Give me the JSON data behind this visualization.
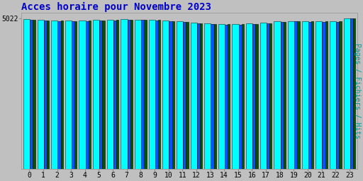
{
  "title": "Acces horaire pour Novembre 2023",
  "ylabel": "Pages / Fichiers / Hits",
  "categories": [
    0,
    1,
    2,
    3,
    4,
    5,
    6,
    7,
    8,
    9,
    10,
    11,
    12,
    13,
    14,
    15,
    16,
    17,
    18,
    19,
    20,
    21,
    22,
    23
  ],
  "pages": [
    4980,
    4960,
    4950,
    4940,
    4945,
    4960,
    4975,
    4985,
    4978,
    4970,
    4940,
    4910,
    4870,
    4840,
    4830,
    4825,
    4840,
    4870,
    4910,
    4930,
    4925,
    4920,
    4925,
    5022
  ],
  "fichiers": [
    4960,
    4940,
    4930,
    4920,
    4925,
    4940,
    4955,
    4965,
    4958,
    4950,
    4920,
    4890,
    4850,
    4820,
    4810,
    4805,
    4820,
    4850,
    4890,
    4910,
    4905,
    4900,
    4905,
    5010
  ],
  "hits": [
    4970,
    4950,
    4940,
    4930,
    4935,
    4950,
    4965,
    4975,
    4968,
    4960,
    4930,
    4900,
    4860,
    4830,
    4820,
    4815,
    4830,
    4860,
    4900,
    4920,
    4915,
    4910,
    4915,
    5018
  ],
  "ytick_label": "5022",
  "ylim_max": 5200,
  "color_pages": "#00FFFF",
  "color_fichiers": "#0055FF",
  "color_hits": "#005500",
  "bg_color": "#C0C0C0",
  "plot_bg": "#C0C0C0",
  "title_color": "#0000CC",
  "ylabel_color": "#009999",
  "title_fontsize": 10,
  "ylabel_fontsize": 7,
  "tick_fontsize": 7
}
